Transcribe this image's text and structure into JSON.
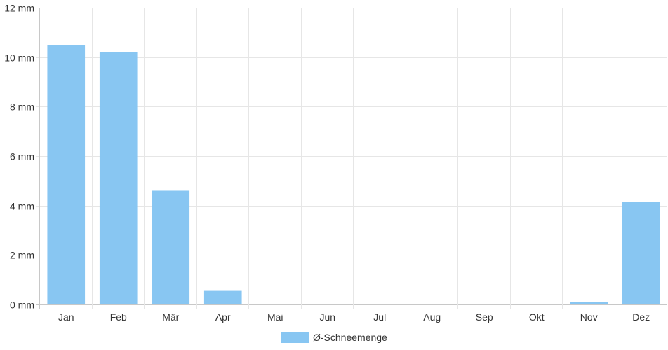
{
  "chart_data": {
    "type": "bar",
    "categories": [
      "Jan",
      "Feb",
      "Mär",
      "Apr",
      "Mai",
      "Jun",
      "Jul",
      "Aug",
      "Sep",
      "Okt",
      "Nov",
      "Dez"
    ],
    "series": [
      {
        "name": "Ø-Schneemenge",
        "color": "#88c6f2",
        "values": [
          10.5,
          10.2,
          4.6,
          0.55,
          0,
          0,
          0,
          0,
          0,
          0,
          0.1,
          4.15
        ]
      }
    ],
    "yunit": " mm",
    "ylim": [
      0,
      12
    ],
    "yticks": [
      0,
      2,
      4,
      6,
      8,
      10,
      12
    ],
    "grid": true,
    "legend": "bottom-center"
  }
}
